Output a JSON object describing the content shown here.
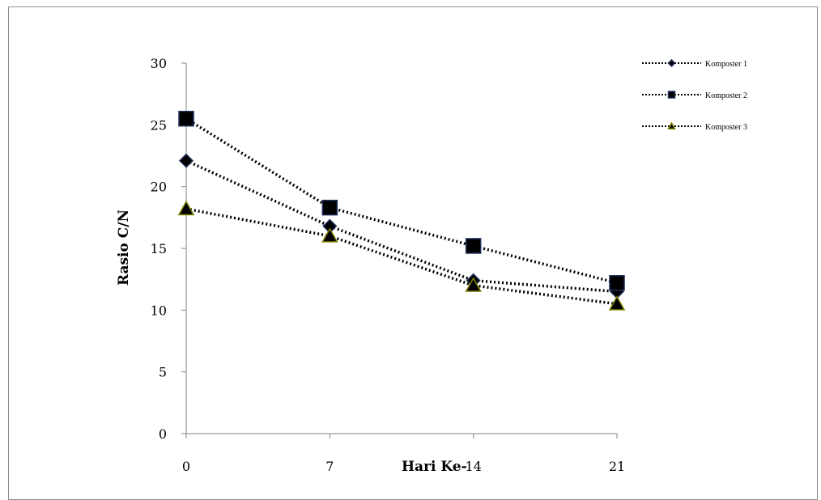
{
  "chart_data": {
    "type": "line",
    "title": "",
    "xlabel": "Hari Ke-",
    "ylabel": "Rasio C/N",
    "x": [
      0,
      7,
      14,
      21
    ],
    "x_tick_labels": [
      "0",
      "7",
      "14",
      "21"
    ],
    "ylim": [
      0,
      30
    ],
    "y_ticks": [
      0,
      5,
      10,
      15,
      20,
      25,
      30
    ],
    "grid": false,
    "legend_position": "top-right",
    "line_style": "dotted",
    "series": [
      {
        "name": "Komposter 1",
        "marker": "diamond",
        "values": [
          22.1,
          16.8,
          12.4,
          11.5
        ]
      },
      {
        "name": "Komposter 2",
        "marker": "square",
        "values": [
          25.5,
          18.3,
          15.2,
          12.2
        ]
      },
      {
        "name": "Komposter 3",
        "marker": "triangle",
        "values": [
          18.2,
          16.0,
          12.0,
          10.5
        ]
      }
    ],
    "colors": {
      "line": "#000000",
      "marker_fill": "#000000",
      "marker_edge_series1": "#1f2f5a",
      "marker_edge_series2": "#1f2f5a",
      "marker_edge_series3": "#7f7f00",
      "axis": "#868686"
    }
  }
}
